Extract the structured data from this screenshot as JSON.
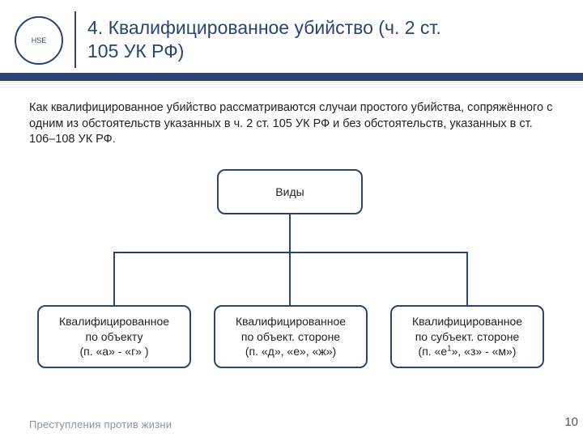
{
  "header": {
    "logo_text": "HSE",
    "title_line1": "4. Квалифицированное убийство (ч. 2 ст.",
    "title_line2": "105 УК РФ)"
  },
  "paragraph": "Как квалифицированное убийство рассматриваются случаи простого убийства, сопряжённого с одним из обстоятельств указанных в ч. 2 ст. 105 УК РФ и без обстоятельств, указанных в ст. 106–108 УК РФ.",
  "diagram": {
    "type": "tree",
    "root": {
      "label": "Виды"
    },
    "children": [
      {
        "label_html": "Квалифицированное<br>по объекту<br>(п. «а» - «г» )"
      },
      {
        "label_html": "Квалифицированное<br>по объект. стороне<br>(п. «д», «е», «ж»)"
      },
      {
        "label_html": "Квалифицированное<br>по субъект. стороне<br>(п. «е<sup>1</sup>», «з» - «м»)"
      }
    ],
    "colors": {
      "node_border": "#2b4570",
      "node_bg": "#ffffff",
      "line": "#2b4570",
      "text": "#222222"
    },
    "node_border_radius": 10,
    "node_border_width": 2,
    "font_size": 14
  },
  "footer_text": "Преступления против жизни",
  "page_number": "10"
}
